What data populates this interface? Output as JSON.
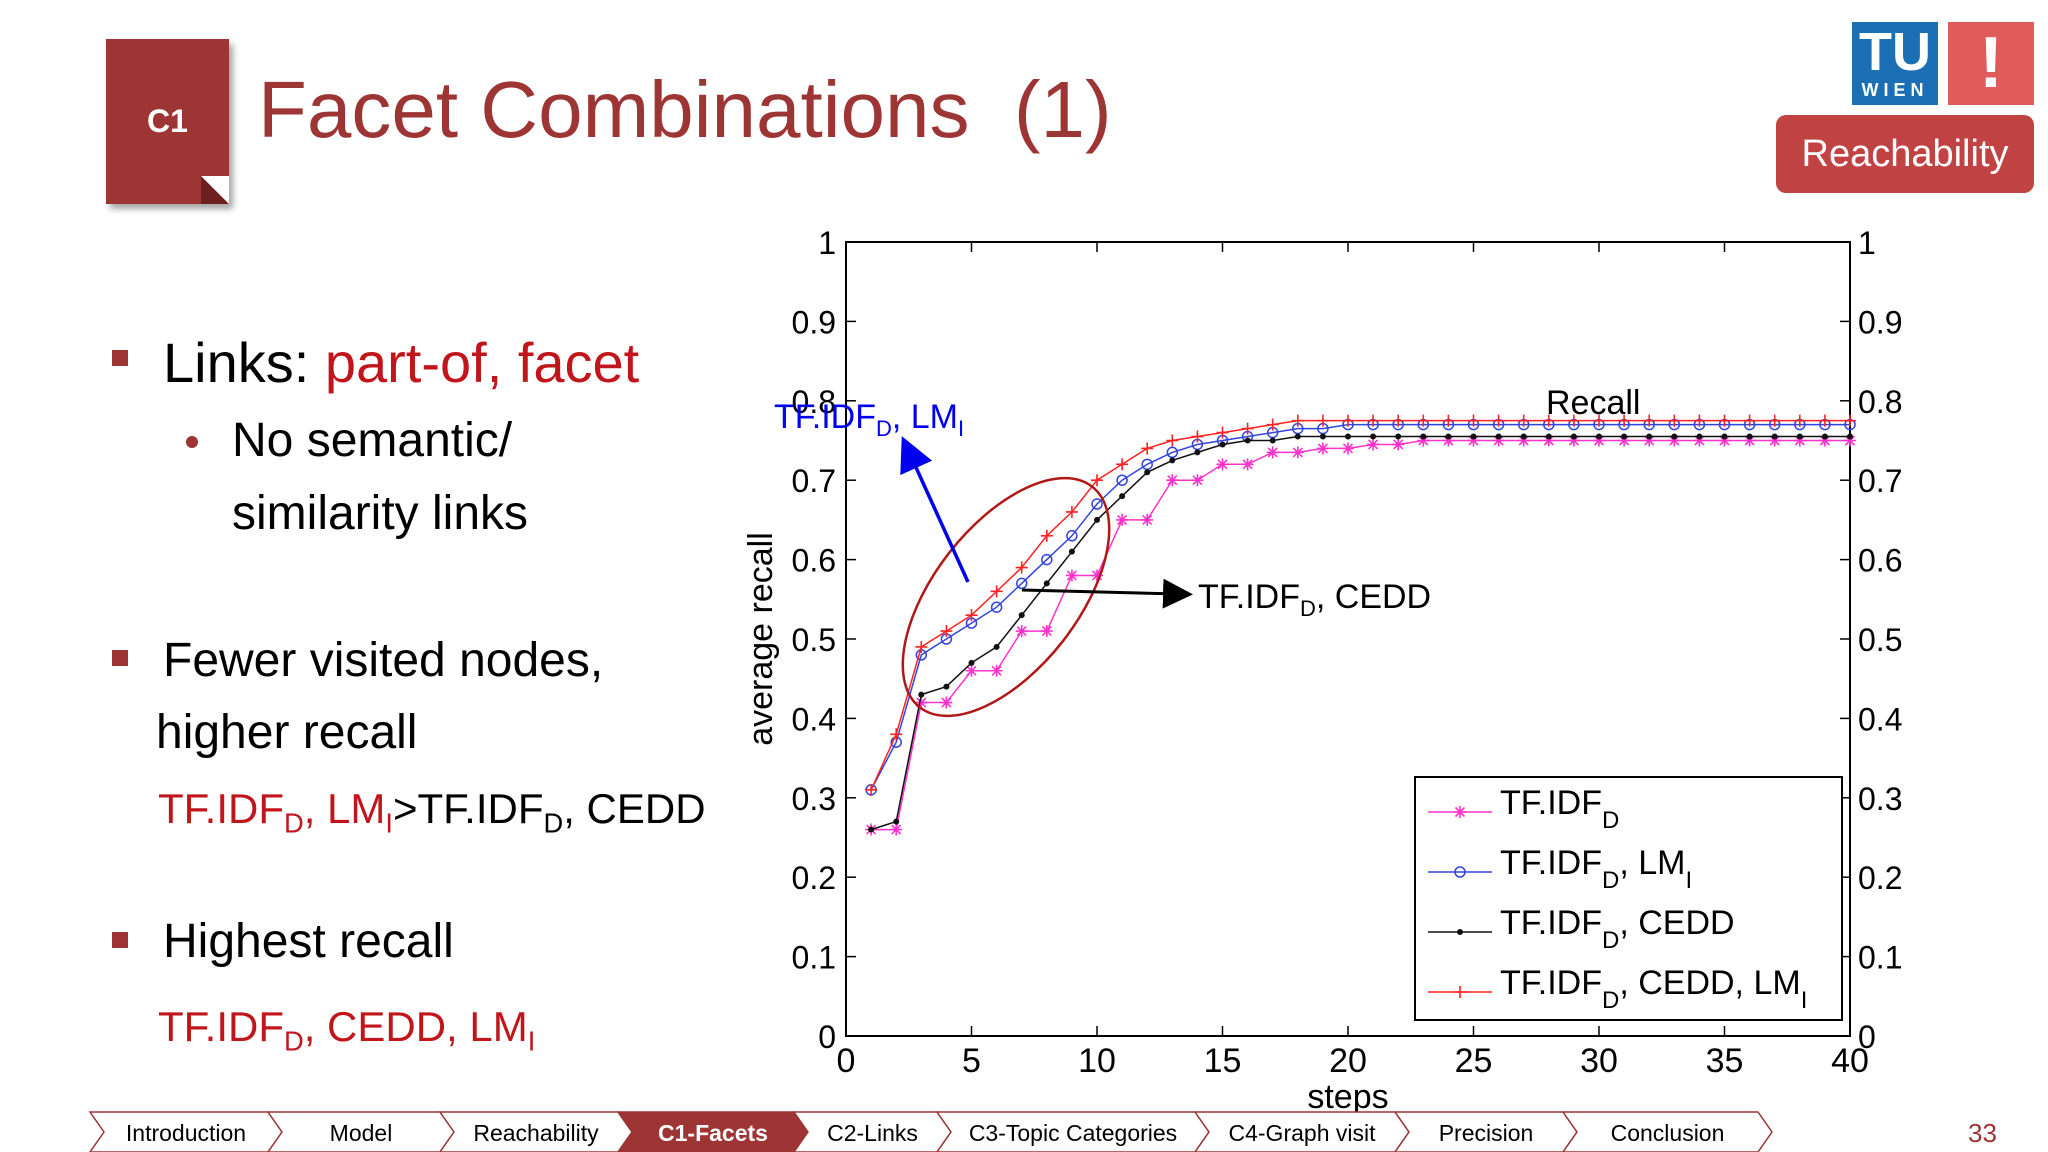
{
  "header": {
    "tag": "C1",
    "title": "Facet Combinations  (1)",
    "logo_text": "TU",
    "logo_sub": "WIEN",
    "logo_mark": "!",
    "badge": "Reachability"
  },
  "bullets": {
    "b1_label": "Links: ",
    "b1_value": "part-of, facet",
    "b1_sub1": "No semantic/",
    "b1_sub2": "similarity links",
    "b2_line1": "Fewer visited nodes,",
    "b2_line2": "higher recall",
    "b2_c1": "TF.IDF",
    "b2_c1_sub": "D",
    "b2_c2": ", LM",
    "b2_c2_sub": "I",
    "b2_c3": ">TF.IDF",
    "b2_c3_sub": "D",
    "b2_c4": ", CEDD",
    "b3_line1": "Highest recall",
    "b3_c1": "TF.IDF",
    "b3_c1_sub": "D",
    "b3_c2": ", CEDD, LM",
    "b3_c2_sub": "I"
  },
  "chart_data": {
    "type": "line",
    "title": "",
    "xlabel": "steps",
    "ylabel": "average recall",
    "xlim": [
      0,
      40
    ],
    "ylim": [
      0,
      1
    ],
    "xticks": [
      0,
      5,
      10,
      15,
      20,
      25,
      30,
      35,
      40
    ],
    "yticks": [
      0,
      0.1,
      0.2,
      0.3,
      0.4,
      0.5,
      0.6,
      0.7,
      0.8,
      0.9,
      1
    ],
    "x": [
      1,
      2,
      3,
      4,
      5,
      6,
      7,
      8,
      9,
      10,
      11,
      12,
      13,
      14,
      15,
      16,
      17,
      18,
      19,
      20,
      21,
      22,
      23,
      24,
      25,
      26,
      27,
      28,
      29,
      30,
      31,
      32,
      33,
      34,
      35,
      36,
      37,
      38,
      39,
      40
    ],
    "legend_position": "bottom-right",
    "series": [
      {
        "name": "TF.IDF",
        "name_sub": "D",
        "name_tail": "",
        "name_sub2": "",
        "color": "#ff33cc",
        "marker": "star",
        "values": [
          0.26,
          0.26,
          0.42,
          0.42,
          0.46,
          0.46,
          0.51,
          0.51,
          0.58,
          0.58,
          0.65,
          0.65,
          0.7,
          0.7,
          0.72,
          0.72,
          0.735,
          0.735,
          0.74,
          0.74,
          0.745,
          0.745,
          0.75,
          0.75,
          0.75,
          0.75,
          0.75,
          0.75,
          0.75,
          0.75,
          0.75,
          0.75,
          0.75,
          0.75,
          0.75,
          0.75,
          0.75,
          0.75,
          0.75,
          0.75
        ]
      },
      {
        "name": "TF.IDF",
        "name_sub": "D",
        "name_tail": ", LM",
        "name_sub2": "I",
        "color": "#3344dd",
        "marker": "circle",
        "values": [
          0.31,
          0.37,
          0.48,
          0.5,
          0.52,
          0.54,
          0.57,
          0.6,
          0.63,
          0.67,
          0.7,
          0.72,
          0.735,
          0.745,
          0.75,
          0.755,
          0.76,
          0.765,
          0.765,
          0.77,
          0.77,
          0.77,
          0.77,
          0.77,
          0.77,
          0.77,
          0.77,
          0.77,
          0.77,
          0.77,
          0.77,
          0.77,
          0.77,
          0.77,
          0.77,
          0.77,
          0.77,
          0.77,
          0.77,
          0.77
        ]
      },
      {
        "name": "TF.IDF",
        "name_sub": "D",
        "name_tail": ", CEDD",
        "name_sub2": "",
        "color": "#111111",
        "marker": "dot",
        "values": [
          0.26,
          0.27,
          0.43,
          0.44,
          0.47,
          0.49,
          0.53,
          0.57,
          0.61,
          0.65,
          0.68,
          0.71,
          0.725,
          0.735,
          0.745,
          0.75,
          0.75,
          0.755,
          0.755,
          0.755,
          0.755,
          0.755,
          0.755,
          0.755,
          0.755,
          0.755,
          0.755,
          0.755,
          0.755,
          0.755,
          0.755,
          0.755,
          0.755,
          0.755,
          0.755,
          0.755,
          0.755,
          0.755,
          0.755,
          0.755
        ]
      },
      {
        "name": "TF.IDF",
        "name_sub": "D",
        "name_tail": ", CEDD, LM",
        "name_sub2": "I",
        "color": "#ff2222",
        "marker": "plus",
        "values": [
          0.31,
          0.38,
          0.49,
          0.51,
          0.53,
          0.56,
          0.59,
          0.63,
          0.66,
          0.7,
          0.72,
          0.74,
          0.75,
          0.755,
          0.76,
          0.765,
          0.77,
          0.775,
          0.775,
          0.775,
          0.775,
          0.775,
          0.775,
          0.775,
          0.775,
          0.775,
          0.775,
          0.775,
          0.775,
          0.775,
          0.775,
          0.775,
          0.775,
          0.775,
          0.775,
          0.775,
          0.775,
          0.775,
          0.775,
          0.775
        ]
      }
    ],
    "annotations": {
      "recall": "Recall",
      "lm_label": "TF.IDF",
      "lm_label_sub": "D",
      "lm_label_tail": ", LM",
      "lm_label_sub2": "I",
      "cedd_label": "TF.IDF",
      "cedd_label_sub": "D",
      "cedd_label_tail": ", CEDD"
    }
  },
  "nav": {
    "items": [
      "Introduction",
      "Model",
      "Reachability",
      "C1-Facets",
      "C2-Links",
      "C3-Topic Categories",
      "C4-Graph visit",
      "Precision",
      "Conclusion"
    ],
    "active_index": 3,
    "active_color": "#9d3535"
  },
  "page_number": "33"
}
